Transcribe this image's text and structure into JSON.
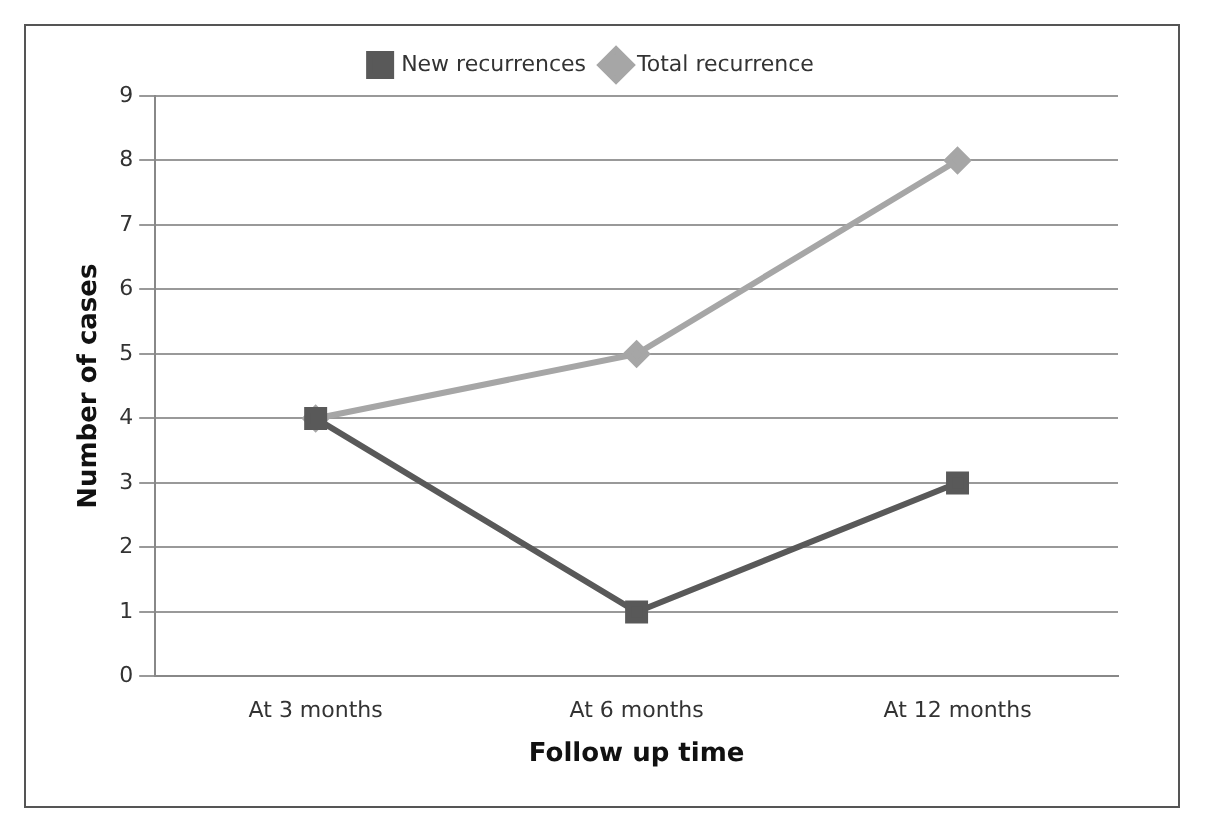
{
  "chart_data": {
    "type": "line",
    "xlabel": "Follow up time",
    "ylabel": "Number of cases",
    "categories": [
      "At 3 months",
      "At 6 months",
      "At 12 months"
    ],
    "series": [
      {
        "name": "Total recurrence",
        "color": "#a6a6a6",
        "values": [
          4,
          5,
          8
        ],
        "marker": "diamond"
      },
      {
        "name": "New recurrences",
        "color": "#595959",
        "values": [
          4,
          1,
          3
        ],
        "marker": "square"
      }
    ],
    "ylim": [
      0,
      9
    ],
    "yticks": [
      0,
      1,
      2,
      3,
      4,
      5,
      6,
      7,
      8,
      9
    ],
    "grid": "y",
    "legend": "top",
    "line_style": "solid"
  }
}
